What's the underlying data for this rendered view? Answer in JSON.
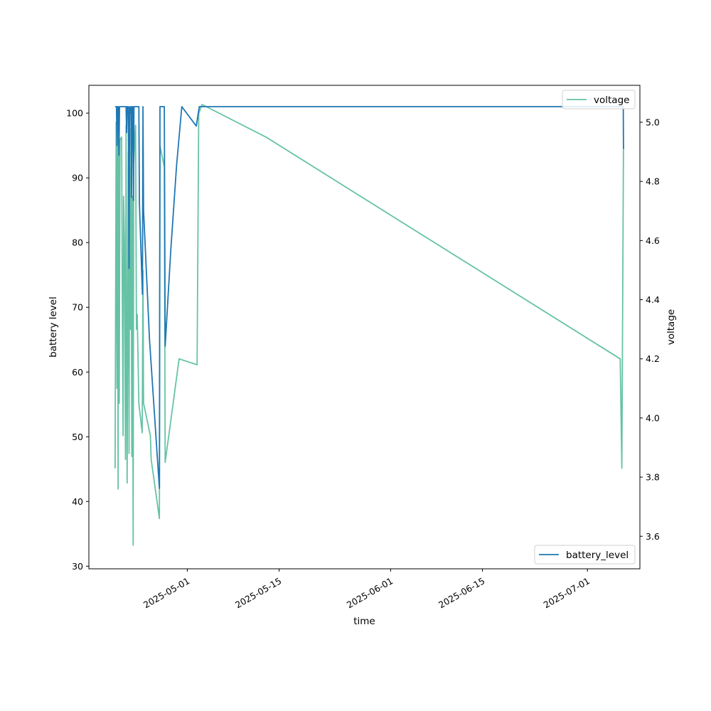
{
  "chart_data": {
    "type": "line",
    "xlabel": "time",
    "ylabel": "battery level",
    "ylabel_right": "voltage",
    "xlim": [
      "2025-04-16",
      "2025-07-09"
    ],
    "ylim": [
      29.6,
      104.3
    ],
    "ylim_right": [
      3.49,
      5.125
    ],
    "x_ticks": [
      "2025-05-01",
      "2025-05-15",
      "2025-06-01",
      "2025-06-15",
      "2025-07-01"
    ],
    "y_ticks": [
      30,
      40,
      50,
      60,
      70,
      80,
      90,
      100
    ],
    "y_ticks_right": [
      3.6,
      3.8,
      4.0,
      4.2,
      4.4,
      4.6,
      4.8,
      5.0
    ],
    "grid": false,
    "series": [
      {
        "name": "battery_level",
        "axis": "left",
        "color": "#1f77b4",
        "legend": "lower-right",
        "points": [
          [
            "2025-04-20T00:00",
            101
          ],
          [
            "2025-04-20T05:00",
            101
          ],
          [
            "2025-04-20T07:00",
            95
          ],
          [
            "2025-04-20T09:00",
            101
          ],
          [
            "2025-04-20T12:00",
            101
          ],
          [
            "2025-04-20T14:00",
            93.5
          ],
          [
            "2025-04-20T16:00",
            101
          ],
          [
            "2025-04-20T20:00",
            101
          ],
          [
            "2025-04-21T00:00",
            101
          ],
          [
            "2025-04-21T06:00",
            101
          ],
          [
            "2025-04-21T09:00",
            101
          ],
          [
            "2025-04-21T12:00",
            101
          ],
          [
            "2025-04-21T15:00",
            101
          ],
          [
            "2025-04-21T16:00",
            101
          ],
          [
            "2025-04-21T18:00",
            97
          ],
          [
            "2025-04-21T20:00",
            101
          ],
          [
            "2025-04-22T00:00",
            101
          ],
          [
            "2025-04-22T03:00",
            76
          ],
          [
            "2025-04-22T05:00",
            101
          ],
          [
            "2025-04-22T08:00",
            100
          ],
          [
            "2025-04-22T10:00",
            101
          ],
          [
            "2025-04-22T12:00",
            87
          ],
          [
            "2025-04-22T14:00",
            101
          ],
          [
            "2025-04-22T17:00",
            101
          ],
          [
            "2025-04-22T19:00",
            86.5
          ],
          [
            "2025-04-22T21:00",
            101
          ],
          [
            "2025-04-23T00:00",
            101
          ],
          [
            "2025-04-23T06:00",
            101
          ],
          [
            "2025-04-23T12:00",
            101
          ],
          [
            "2025-04-23T15:00",
            101
          ],
          [
            "2025-04-23T17:00",
            86
          ],
          [
            "2025-04-24T04:00",
            72
          ],
          [
            "2025-04-24T06:00",
            101
          ],
          [
            "2025-04-24T08:00",
            85
          ],
          [
            "2025-04-25T06:00",
            65
          ],
          [
            "2025-04-26T18:00",
            42
          ],
          [
            "2025-04-26T20:00",
            101
          ],
          [
            "2025-04-27T12:00",
            101
          ],
          [
            "2025-04-27T15:00",
            64
          ],
          [
            "2025-04-28T12:00",
            79
          ],
          [
            "2025-04-29T09:00",
            92
          ],
          [
            "2025-04-30T04:00",
            101
          ],
          [
            "2025-05-02T09:00",
            98
          ],
          [
            "2025-05-02T20:00",
            101
          ],
          [
            "2025-05-10T00:00",
            101
          ],
          [
            "2025-06-01T00:00",
            101
          ],
          [
            "2025-07-06T11:00",
            101
          ],
          [
            "2025-07-06T12:00",
            94.5
          ]
        ]
      },
      {
        "name": "voltage",
        "axis": "right",
        "color": "#66c2a5",
        "legend": "upper-right",
        "points": [
          [
            "2025-04-20T00:00",
            3.83
          ],
          [
            "2025-04-20T04:00",
            5.0
          ],
          [
            "2025-04-20T07:00",
            4.1
          ],
          [
            "2025-04-20T09:00",
            4.98
          ],
          [
            "2025-04-20T11:00",
            3.76
          ],
          [
            "2025-04-20T13:00",
            4.96
          ],
          [
            "2025-04-20T15:00",
            4.05
          ],
          [
            "2025-04-20T18:00",
            4.94
          ],
          [
            "2025-04-21T00:00",
            4.95
          ],
          [
            "2025-04-21T02:00",
            4.45
          ],
          [
            "2025-04-21T05:00",
            3.94
          ],
          [
            "2025-04-21T07:00",
            4.75
          ],
          [
            "2025-04-21T10:00",
            4.6
          ],
          [
            "2025-04-21T14:00",
            3.86
          ],
          [
            "2025-04-21T16:00",
            4.99
          ],
          [
            "2025-04-21T18:00",
            4.25
          ],
          [
            "2025-04-21T20:00",
            3.78
          ],
          [
            "2025-04-22T00:00",
            4.9
          ],
          [
            "2025-04-22T03:00",
            3.88
          ],
          [
            "2025-04-22T05:00",
            4.85
          ],
          [
            "2025-04-22T08:00",
            4.3
          ],
          [
            "2025-04-22T10:00",
            4.98
          ],
          [
            "2025-04-22T13:00",
            3.87
          ],
          [
            "2025-04-22T15:00",
            4.75
          ],
          [
            "2025-04-22T18:00",
            3.57
          ],
          [
            "2025-04-22T20:00",
            4.85
          ],
          [
            "2025-04-23T00:00",
            4.95
          ],
          [
            "2025-04-23T03:00",
            4.99
          ],
          [
            "2025-04-23T06:00",
            4.3
          ],
          [
            "2025-04-23T09:00",
            4.35
          ],
          [
            "2025-04-23T15:00",
            4.05
          ],
          [
            "2025-04-24T03:00",
            3.95
          ],
          [
            "2025-04-24T06:00",
            4.5
          ],
          [
            "2025-04-24T08:00",
            4.05
          ],
          [
            "2025-04-25T09:00",
            3.94
          ],
          [
            "2025-04-25T12:00",
            3.86
          ],
          [
            "2025-04-26T18:00",
            3.66
          ],
          [
            "2025-04-26T20:00",
            4.92
          ],
          [
            "2025-04-27T12:00",
            4.85
          ],
          [
            "2025-04-27T15:00",
            3.85
          ],
          [
            "2025-04-29T18:00",
            4.2
          ],
          [
            "2025-05-02T12:00",
            4.18
          ],
          [
            "2025-05-02T18:00",
            5.03
          ],
          [
            "2025-05-03T06:00",
            5.06
          ],
          [
            "2025-05-13T00:00",
            4.95
          ],
          [
            "2025-07-06T00:00",
            4.2
          ],
          [
            "2025-07-06T06:00",
            3.83
          ],
          [
            "2025-07-06T12:00",
            4.92
          ]
        ]
      }
    ]
  }
}
